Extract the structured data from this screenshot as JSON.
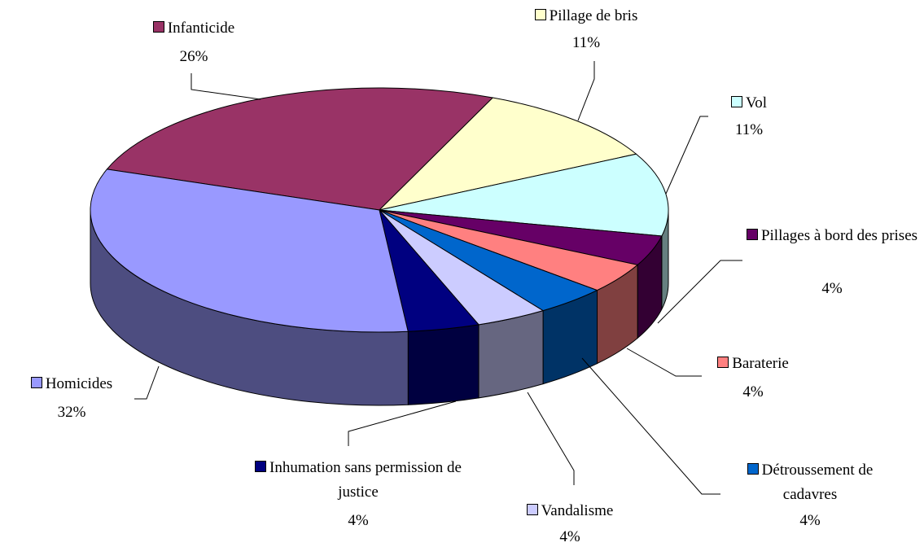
{
  "chart_data": {
    "type": "pie",
    "categories": [
      "Infanticide",
      "Pillage de bris",
      "Vol",
      "Pillages à bord des prises",
      "Baraterie",
      "Détroussement de cadavres",
      "Vandalisme",
      "Inhumation sans permission de justice",
      "Homicides"
    ],
    "values": [
      26,
      11,
      11,
      4,
      4,
      4,
      4,
      4,
      32
    ],
    "value_labels": [
      "26%",
      "11%",
      "11%",
      "4%",
      "4%",
      "4%",
      "4%",
      "4%",
      "32%"
    ],
    "colors": [
      "#993366",
      "#ffffcc",
      "#ccffff",
      "#660066",
      "#ff8080",
      "#0066cc",
      "#ccccff",
      "#000080",
      "#9999ff"
    ]
  }
}
